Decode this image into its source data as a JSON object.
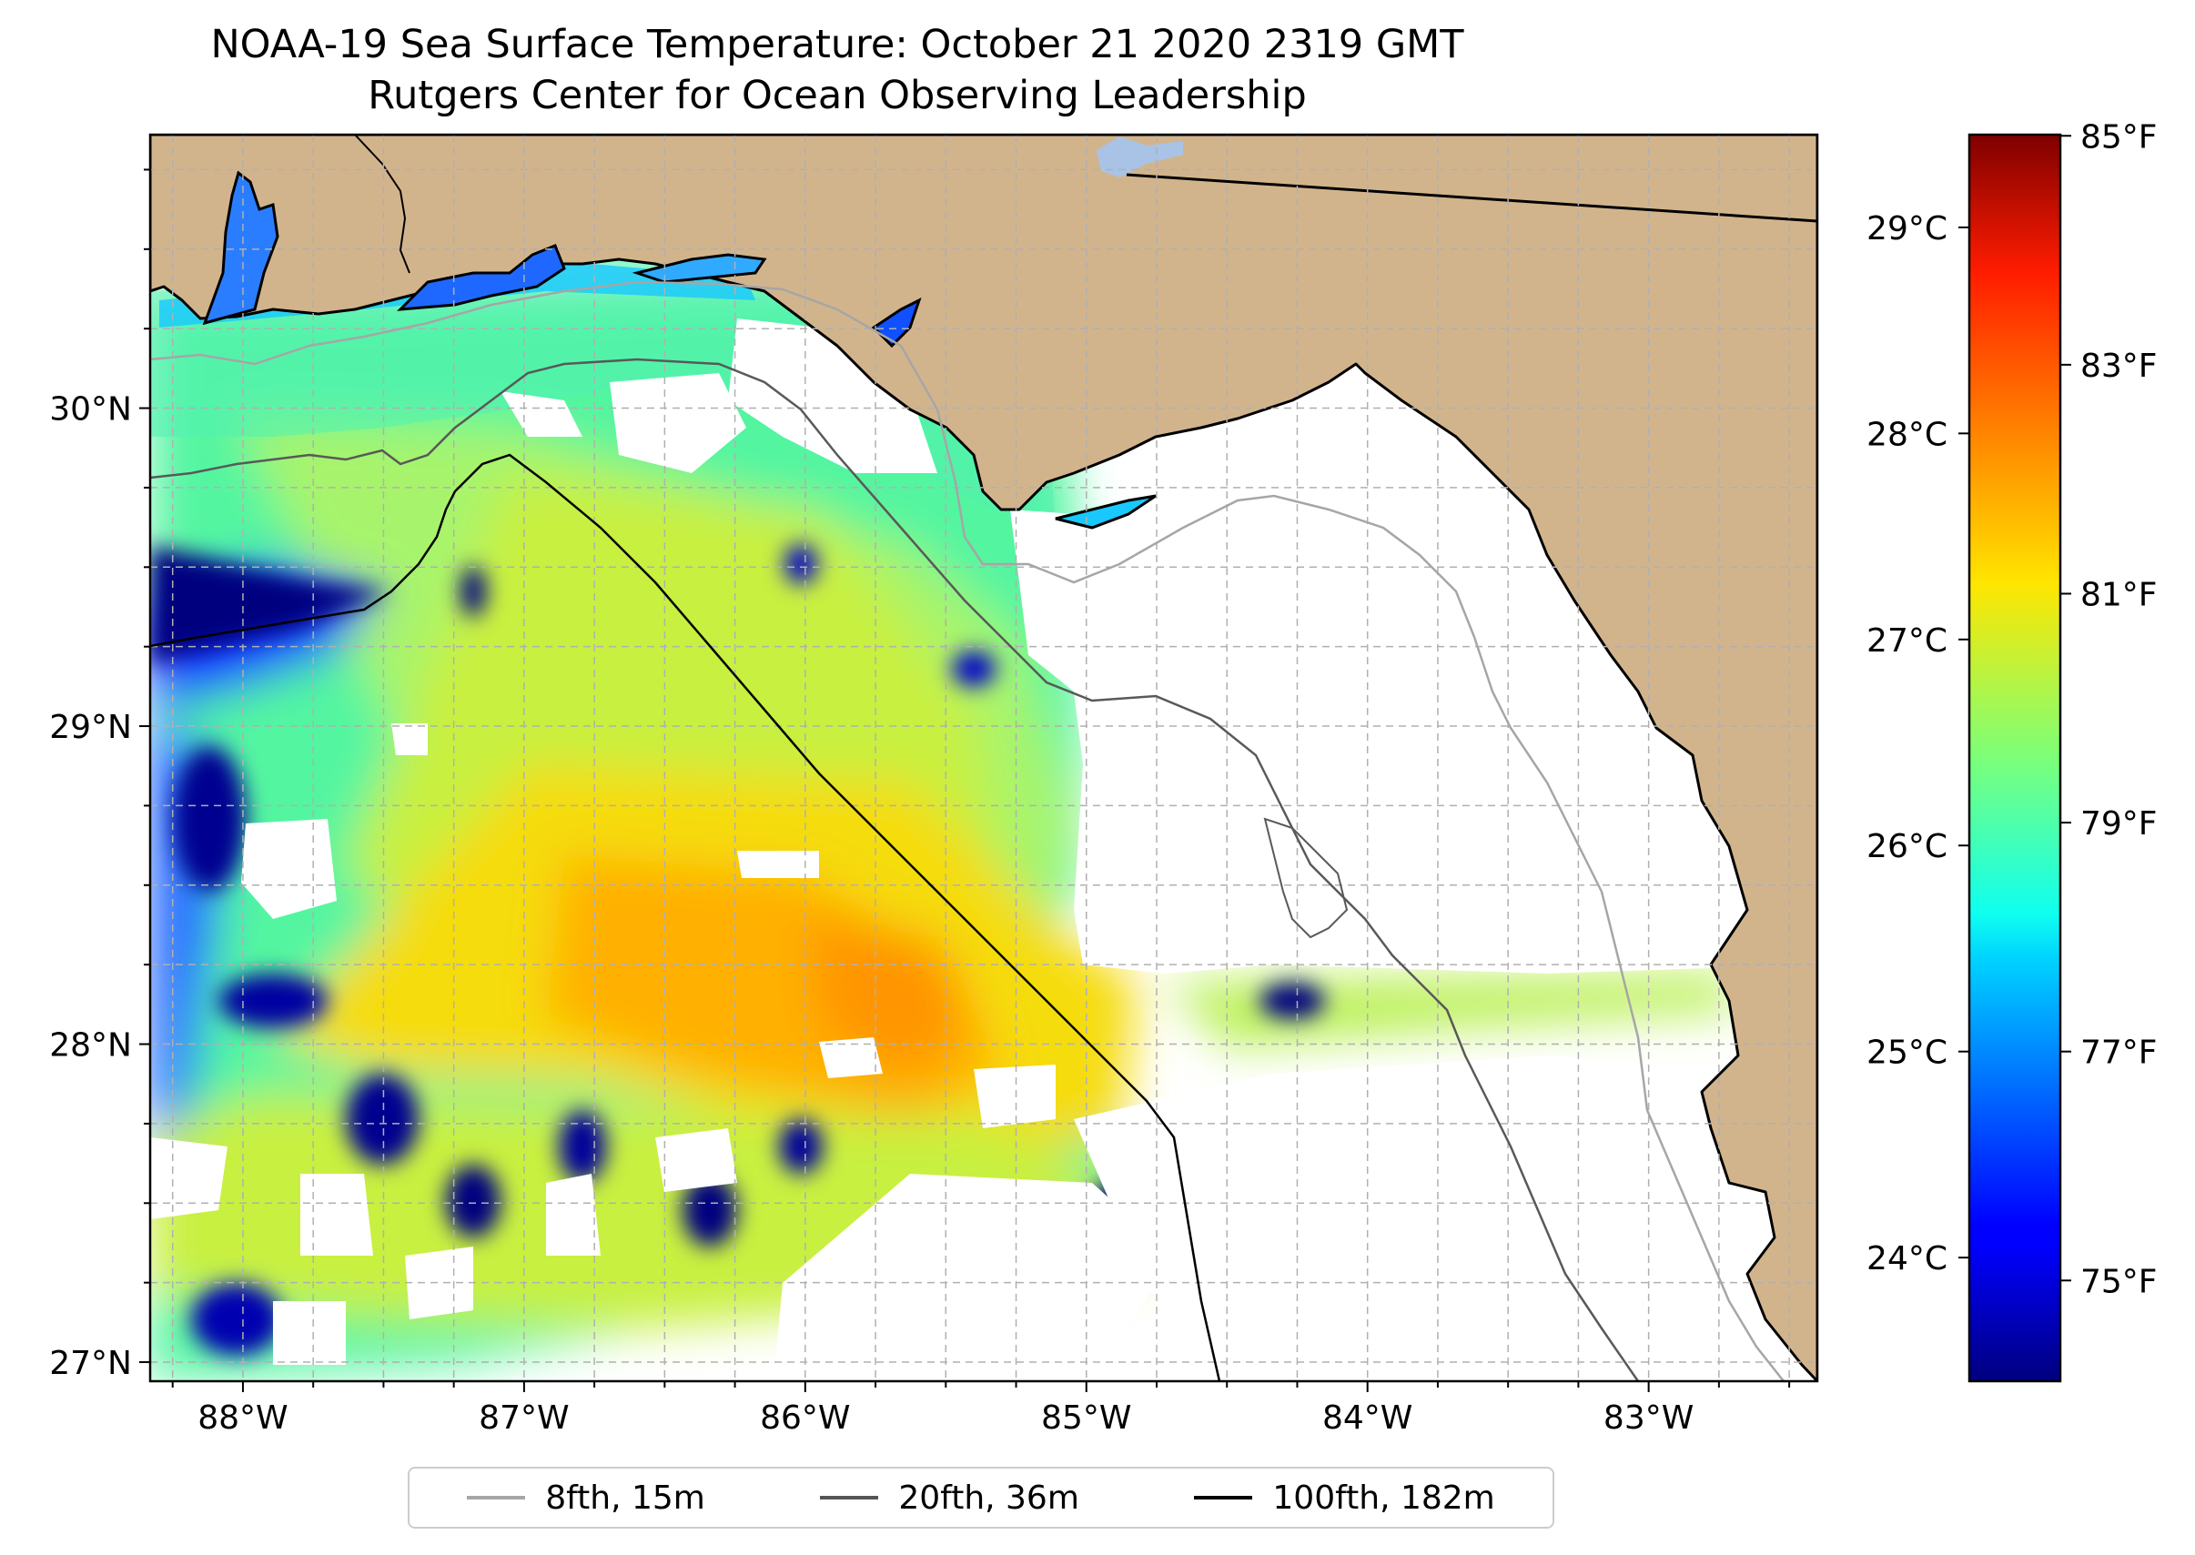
{
  "title": {
    "line1": "NOAA-19 Sea Surface Temperature: October 21 2020 2319 GMT",
    "line2": "Rutgers Center for Ocean Observing Leadership"
  },
  "map": {
    "extent": {
      "lon_min": -88.33,
      "lon_max": -82.4,
      "lat_min": 26.94,
      "lat_max": 30.86
    },
    "colors": {
      "land": "#d2b48c",
      "no_data": "#ffffff",
      "grid": "#b0b0b0",
      "coast": "#000000",
      "lake": "#a8c3e6"
    },
    "lat_labels": [
      {
        "value": 30,
        "text": "30°N"
      },
      {
        "value": 29,
        "text": "29°N"
      },
      {
        "value": 28,
        "text": "28°N"
      },
      {
        "value": 27,
        "text": "27°N"
      }
    ],
    "lon_labels": [
      {
        "value": -88,
        "text": "88°W"
      },
      {
        "value": -87,
        "text": "87°W"
      },
      {
        "value": -86,
        "text": "86°W"
      },
      {
        "value": -85,
        "text": "85°W"
      },
      {
        "value": -84,
        "text": "84°W"
      },
      {
        "value": -83,
        "text": "83°W"
      }
    ]
  },
  "legend": {
    "items": [
      {
        "label": "8fth, 15m",
        "color": "#a6a6a6"
      },
      {
        "label": "20fth, 36m",
        "color": "#555555"
      },
      {
        "label": "100fth, 182m",
        "color": "#000000"
      }
    ]
  },
  "colorbar": {
    "colormap": "jet",
    "range_c": [
      23.4,
      29.45
    ],
    "celsius_ticks": [
      {
        "value": 24,
        "text": "24°C"
      },
      {
        "value": 25,
        "text": "25°C"
      },
      {
        "value": 26,
        "text": "26°C"
      },
      {
        "value": 27,
        "text": "27°C"
      },
      {
        "value": 28,
        "text": "28°C"
      },
      {
        "value": 29,
        "text": "29°C"
      }
    ],
    "fahrenheit_ticks": [
      {
        "value": 75,
        "text": "75°F"
      },
      {
        "value": 77,
        "text": "77°F"
      },
      {
        "value": 79,
        "text": "79°F"
      },
      {
        "value": 81,
        "text": "81°F"
      },
      {
        "value": 83,
        "text": "83°F"
      },
      {
        "value": 85,
        "text": "85°F"
      }
    ]
  }
}
